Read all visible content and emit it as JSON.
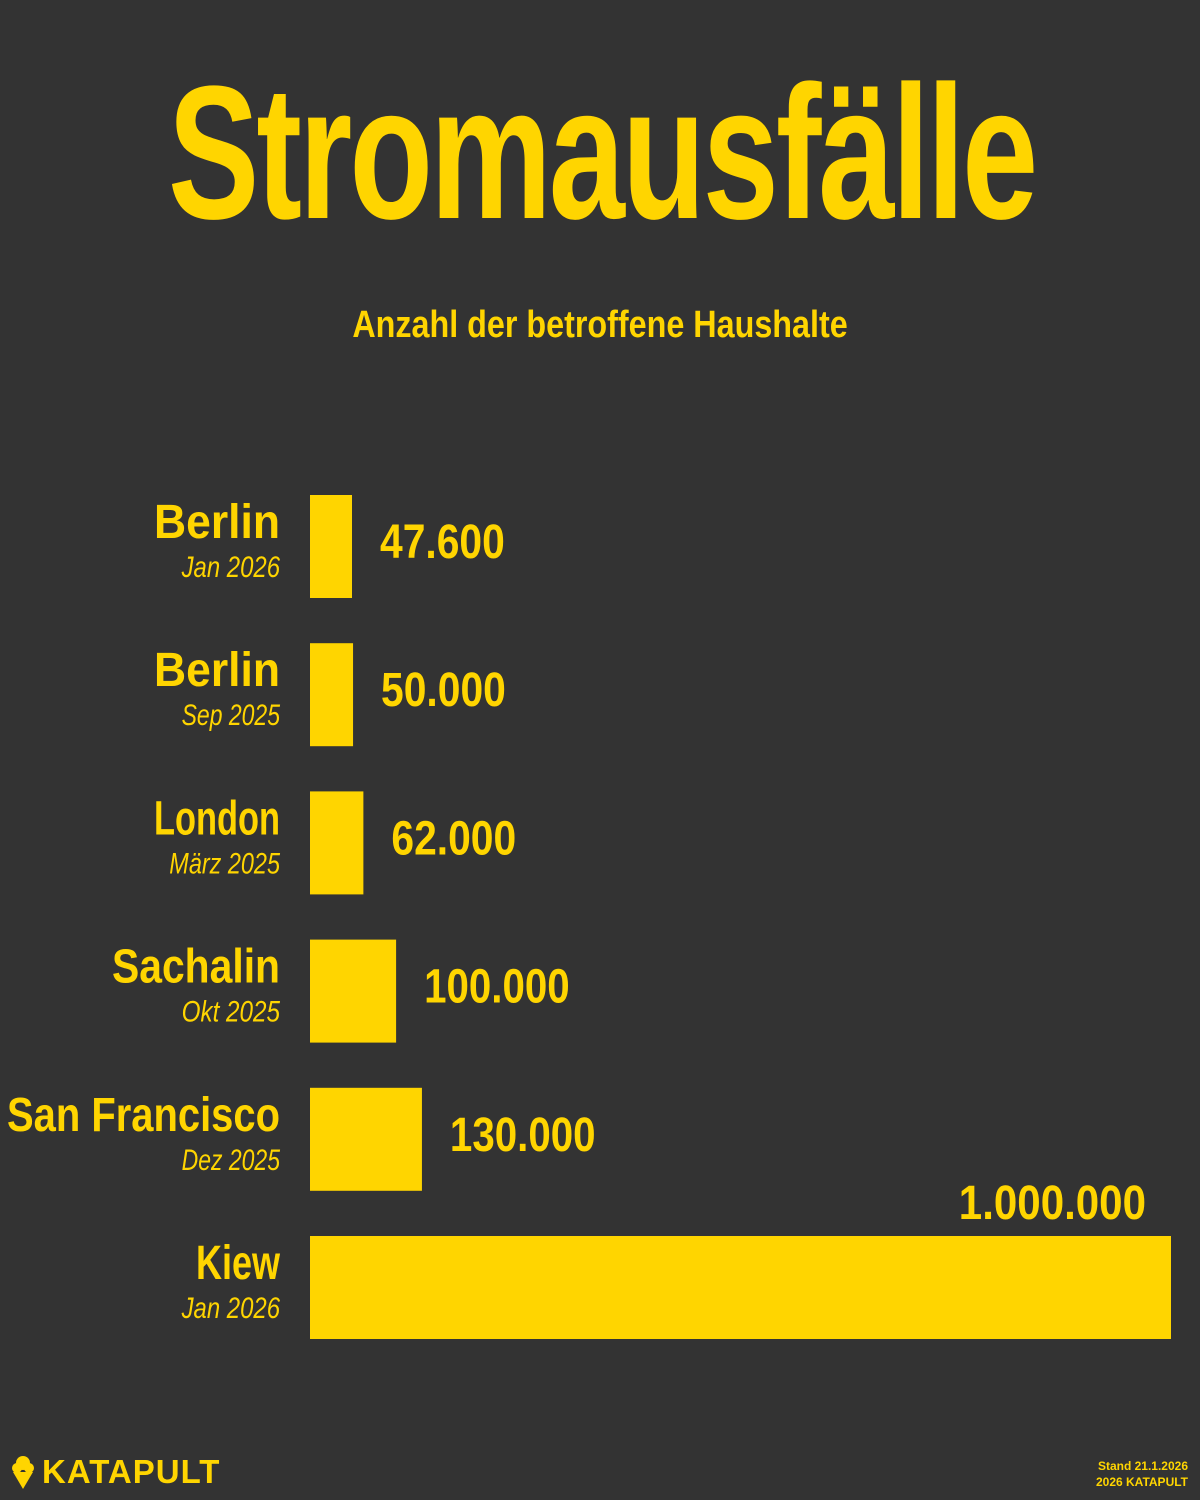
{
  "header": {
    "title": "Stromausfälle",
    "subtitle": "Anzahl der betroffene Haushalte"
  },
  "colors": {
    "background": "#333333",
    "accent": "#FFD500"
  },
  "chart_data": {
    "type": "bar",
    "orientation": "horizontal",
    "title": "Stromausfälle",
    "subtitle": "Anzahl der betroffene Haushalte",
    "categories": [
      {
        "name": "Berlin",
        "date": "Jan 2026"
      },
      {
        "name": "Berlin",
        "date": "Sep 2025"
      },
      {
        "name": "London",
        "date": "März 2025"
      },
      {
        "name": "Sachalin",
        "date": "Okt 2025"
      },
      {
        "name": "San Francisco",
        "date": "Dez 2025"
      },
      {
        "name": "Kiew",
        "date": "Jan 2026"
      }
    ],
    "values": [
      47600,
      50000,
      62000,
      100000,
      130000,
      1000000
    ],
    "value_labels": [
      "47.600",
      "50.000",
      "62.000",
      "100.000",
      "130.000",
      "1.000.000"
    ],
    "xlim": [
      0,
      1000000
    ],
    "grid": false,
    "legend": "none"
  },
  "footer": {
    "brand": "KATAPULT",
    "brand_icon": "ice-cream-cone-icon",
    "stand": "Stand 21.1.2026",
    "copyright": "2026 KATAPULT"
  }
}
